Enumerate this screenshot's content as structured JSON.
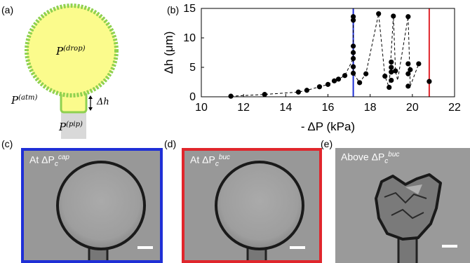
{
  "panels": {
    "a": {
      "label": "(a)",
      "p_drop": "P",
      "p_drop_sup": "(drop)",
      "p_atm": "P",
      "p_atm_sup": "(atm)",
      "p_pip": "P",
      "p_pip_sup": "(pip)",
      "delta_h": "Δh",
      "colors": {
        "drop_fill": "#fbfb8c",
        "drop_border": "#8fd14f",
        "pipette": "#d9d9d9",
        "plug": "#fbfb8c"
      }
    },
    "b": {
      "label": "(b)"
    },
    "c": {
      "label": "(c)",
      "caption_prefix": "At ΔP",
      "caption_sub": "c",
      "caption_sup": "cap",
      "frame_color": "#1f2fd6"
    },
    "d": {
      "label": "(d)",
      "caption_prefix": "At ΔP",
      "caption_sub": "c",
      "caption_sup": "buc",
      "frame_color": "#e0262c"
    },
    "e": {
      "label": "(e)",
      "caption_prefix": "Above ΔP",
      "caption_sub": "c",
      "caption_sup": "buc"
    }
  },
  "chart_data": {
    "type": "scatter",
    "xlabel": "- ΔP (kPa)",
    "ylabel": "Δh (μm)",
    "xlim": [
      10,
      22
    ],
    "ylim": [
      0,
      15
    ],
    "xticks": [
      10,
      12,
      14,
      16,
      18,
      20,
      22
    ],
    "yticks": [
      0,
      5,
      10,
      15
    ],
    "vlines": [
      {
        "x": 17.2,
        "color": "#1f2fd6"
      },
      {
        "x": 20.8,
        "color": "#e0262c"
      }
    ],
    "dashed_path": [
      [
        11.4,
        0.1
      ],
      [
        13.0,
        0.4
      ],
      [
        14.6,
        0.8
      ],
      [
        15.0,
        1.1
      ],
      [
        15.6,
        1.7
      ],
      [
        16.0,
        2.1
      ],
      [
        16.3,
        2.7
      ],
      [
        16.5,
        3.0
      ],
      [
        16.8,
        3.6
      ],
      [
        17.2,
        6.5
      ],
      [
        17.2,
        13.6
      ],
      [
        17.2,
        4.0
      ],
      [
        17.5,
        2.4
      ],
      [
        17.8,
        3.9
      ],
      [
        18.4,
        14.1
      ],
      [
        18.7,
        3.5
      ],
      [
        18.9,
        1.6
      ],
      [
        19.1,
        13.7
      ],
      [
        19.2,
        4.4
      ],
      [
        19.3,
        2.8
      ],
      [
        19.8,
        13.6
      ],
      [
        19.9,
        1.8
      ],
      [
        20.3,
        5.6
      ]
    ],
    "points": [
      [
        11.4,
        0.1
      ],
      [
        13.0,
        0.4
      ],
      [
        14.6,
        0.8
      ],
      [
        15.0,
        1.1
      ],
      [
        15.6,
        1.7
      ],
      [
        16.0,
        2.1
      ],
      [
        16.3,
        2.7
      ],
      [
        16.5,
        3.0
      ],
      [
        16.8,
        3.6
      ],
      [
        17.2,
        4.0
      ],
      [
        17.2,
        5.1
      ],
      [
        17.2,
        6.5
      ],
      [
        17.2,
        7.5
      ],
      [
        17.2,
        8.6
      ],
      [
        17.2,
        13.0
      ],
      [
        17.2,
        13.6
      ],
      [
        17.5,
        2.4
      ],
      [
        17.8,
        3.9
      ],
      [
        18.4,
        14.1
      ],
      [
        18.7,
        3.5
      ],
      [
        18.9,
        1.6
      ],
      [
        19.0,
        2.8
      ],
      [
        19.0,
        4.2
      ],
      [
        19.0,
        5.0
      ],
      [
        19.0,
        5.9
      ],
      [
        19.1,
        13.7
      ],
      [
        19.2,
        4.4
      ],
      [
        19.8,
        13.6
      ],
      [
        19.8,
        3.9
      ],
      [
        19.8,
        5.6
      ],
      [
        19.8,
        1.8
      ],
      [
        19.9,
        4.6
      ],
      [
        20.3,
        5.6
      ],
      [
        20.8,
        2.6
      ]
    ]
  }
}
